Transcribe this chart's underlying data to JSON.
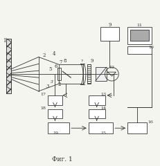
{
  "bg_color": "#f5f5f0",
  "line_color": "#333333",
  "title": "Фиг. 1",
  "title_fontsize": 7,
  "fig_width": 2.31,
  "fig_height": 2.4,
  "dpi": 100
}
